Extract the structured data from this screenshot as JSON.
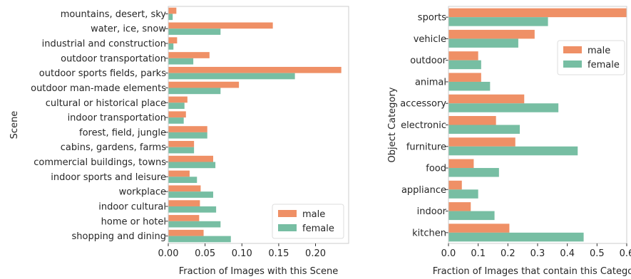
{
  "colors": {
    "male": "#ef9066",
    "female": "#77bea3"
  },
  "chart_data": [
    {
      "type": "bar",
      "orientation": "horizontal",
      "xlabel": "Fraction of Images with this Scene",
      "ylabel": "Scene",
      "xlim": [
        0,
        0.245
      ],
      "xticks": [
        0.0,
        0.05,
        0.1,
        0.15,
        0.2
      ],
      "xtick_labels": [
        "0.00",
        "0.05",
        "0.10",
        "0.15",
        "0.20"
      ],
      "legend_position": "lower-right",
      "grid": false,
      "categories": [
        "mountains, desert, sky",
        "water, ice, snow",
        "industrial and construction",
        "outdoor transportation",
        "outdoor sports fields, parks",
        "outdoor man-made elements",
        "cultural or historical place",
        "indoor transportation",
        "forest, field, jungle",
        "cabins, gardens, farms",
        "commercial buildings, towns",
        "indoor sports and leisure",
        "workplace",
        "indoor cultural",
        "home or hotel",
        "shopping and dining"
      ],
      "series": [
        {
          "name": "male",
          "values": [
            0.011,
            0.142,
            0.012,
            0.056,
            0.235,
            0.096,
            0.026,
            0.024,
            0.053,
            0.035,
            0.061,
            0.029,
            0.044,
            0.043,
            0.042,
            0.048
          ]
        },
        {
          "name": "female",
          "values": [
            0.006,
            0.071,
            0.007,
            0.034,
            0.172,
            0.071,
            0.022,
            0.021,
            0.053,
            0.035,
            0.064,
            0.039,
            0.061,
            0.065,
            0.071,
            0.085
          ]
        }
      ]
    },
    {
      "type": "bar",
      "orientation": "horizontal",
      "xlabel": "Fraction of Images that contain this Category",
      "ylabel": "Object Category",
      "xlim": [
        0,
        0.6
      ],
      "xticks": [
        0.0,
        0.1,
        0.2,
        0.3,
        0.4,
        0.5,
        0.6
      ],
      "xtick_labels": [
        "0.0",
        "0.1",
        "0.2",
        "0.3",
        "0.4",
        "0.5",
        "0.6"
      ],
      "legend_position": "upper-right",
      "grid": false,
      "categories": [
        "sports",
        "vehicle",
        "outdoor",
        "animal",
        "accessory",
        "electronic",
        "furniture",
        "food",
        "appliance",
        "indoor",
        "kitchen"
      ],
      "series": [
        {
          "name": "male",
          "values": [
            0.6,
            0.29,
            0.1,
            0.11,
            0.255,
            0.16,
            0.225,
            0.085,
            0.045,
            0.075,
            0.205
          ]
        },
        {
          "name": "female",
          "values": [
            0.335,
            0.235,
            0.11,
            0.14,
            0.37,
            0.24,
            0.435,
            0.17,
            0.1,
            0.155,
            0.455
          ]
        }
      ]
    }
  ]
}
